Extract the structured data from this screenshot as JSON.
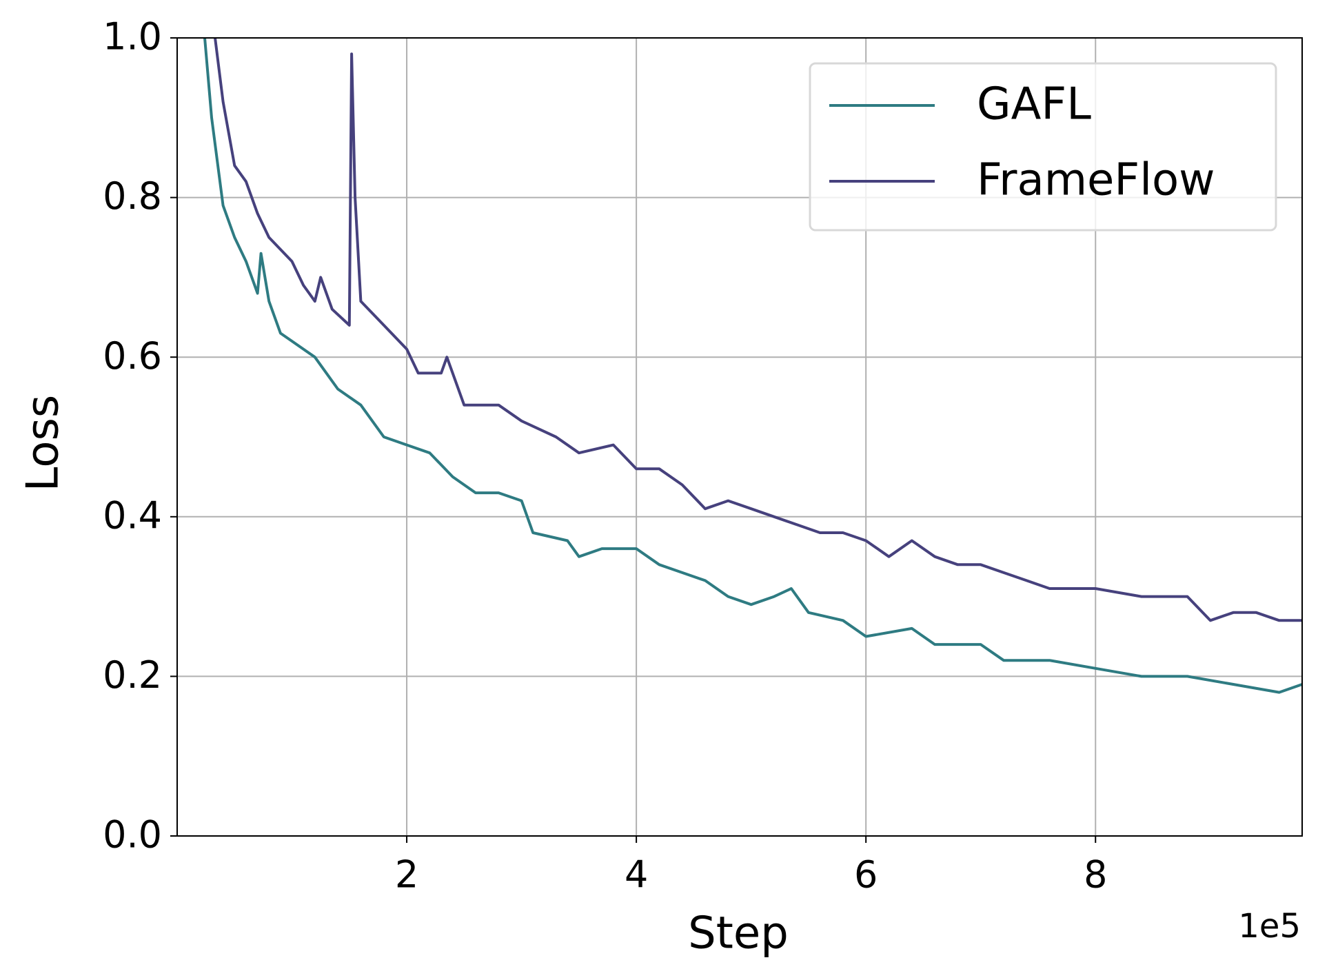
{
  "chart_data": {
    "type": "line",
    "x_label": "Step",
    "y_label": "Loss",
    "x_offset_label": "1e5",
    "xlim": [
      0,
      9.8
    ],
    "ylim": [
      0,
      1
    ],
    "xticks": [
      2,
      4,
      6,
      8
    ],
    "yticks": [
      {
        "value": 0,
        "label": "0.0"
      },
      0.2,
      0.4,
      0.6,
      0.8,
      {
        "value": 1,
        "label": "1.0"
      }
    ],
    "grid": true,
    "legend": "upper right",
    "series": [
      {
        "name": "GAFL",
        "color": "#2e7b82",
        "x": [
          0.24,
          0.3,
          0.4,
          0.5,
          0.6,
          0.7,
          0.73,
          0.8,
          0.9,
          1.0,
          1.2,
          1.3,
          1.4,
          1.6,
          1.8,
          2.0,
          2.2,
          2.4,
          2.6,
          2.8,
          3.0,
          3.1,
          3.4,
          3.5,
          3.7,
          4.0,
          4.2,
          4.4,
          4.6,
          4.8,
          5.0,
          5.2,
          5.35,
          5.5,
          5.8,
          6.0,
          6.4,
          6.6,
          7.0,
          7.2,
          7.6,
          8.0,
          8.4,
          8.8,
          9.2,
          9.6,
          9.8
        ],
        "values": [
          1.0,
          0.9,
          0.79,
          0.75,
          0.72,
          0.68,
          0.73,
          0.67,
          0.63,
          0.62,
          0.6,
          0.58,
          0.56,
          0.54,
          0.5,
          0.49,
          0.48,
          0.45,
          0.43,
          0.43,
          0.42,
          0.38,
          0.37,
          0.35,
          0.36,
          0.36,
          0.34,
          0.33,
          0.32,
          0.3,
          0.29,
          0.3,
          0.31,
          0.28,
          0.27,
          0.25,
          0.26,
          0.24,
          0.24,
          0.22,
          0.22,
          0.21,
          0.2,
          0.2,
          0.19,
          0.18,
          0.19
        ]
      },
      {
        "name": "FrameFlow",
        "color": "#46417d",
        "x": [
          0.33,
          0.4,
          0.5,
          0.6,
          0.7,
          0.8,
          1.0,
          1.1,
          1.2,
          1.25,
          1.35,
          1.5,
          1.52,
          1.55,
          1.6,
          1.8,
          2.0,
          2.1,
          2.3,
          2.35,
          2.5,
          2.8,
          3.0,
          3.3,
          3.5,
          3.8,
          4.0,
          4.2,
          4.4,
          4.6,
          4.8,
          5.0,
          5.2,
          5.4,
          5.6,
          5.8,
          6.0,
          6.2,
          6.4,
          6.6,
          6.8,
          7.0,
          7.2,
          7.4,
          7.6,
          8.0,
          8.4,
          8.8,
          9.0,
          9.2,
          9.4,
          9.6,
          9.8
        ],
        "values": [
          1.0,
          0.92,
          0.84,
          0.82,
          0.78,
          0.75,
          0.72,
          0.69,
          0.67,
          0.7,
          0.66,
          0.64,
          0.98,
          0.8,
          0.67,
          0.64,
          0.61,
          0.58,
          0.58,
          0.6,
          0.54,
          0.54,
          0.52,
          0.5,
          0.48,
          0.49,
          0.46,
          0.46,
          0.44,
          0.41,
          0.42,
          0.41,
          0.4,
          0.39,
          0.38,
          0.38,
          0.37,
          0.35,
          0.37,
          0.35,
          0.34,
          0.34,
          0.33,
          0.32,
          0.31,
          0.31,
          0.3,
          0.3,
          0.27,
          0.28,
          0.28,
          0.27,
          0.27
        ]
      }
    ]
  }
}
